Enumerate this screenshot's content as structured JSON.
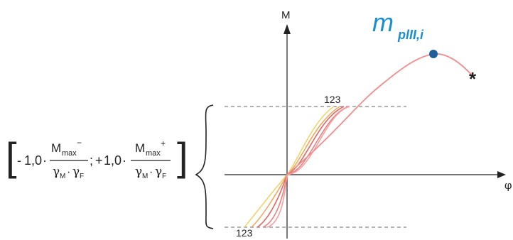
{
  "formula": {
    "left_bracket": "[",
    "right_bracket": "]",
    "term1": {
      "sign": "-",
      "factor": "1,0",
      "dot": "·",
      "numerator_base": "M",
      "numerator_sub": "max",
      "numerator_sup": "−",
      "den_gamma1": "γ",
      "den_sub1": "M",
      "den_dot": "·",
      "den_gamma2": "γ",
      "den_sub2": "F"
    },
    "separator": ";",
    "term2": {
      "sign": "+",
      "factor": "1,0",
      "dot": "·",
      "numerator_base": "M",
      "numerator_sub": "max",
      "numerator_sup": "+",
      "den_gamma1": "γ",
      "den_sub1": "M",
      "den_dot": "·",
      "den_gamma2": "γ",
      "den_sub2": "F"
    }
  },
  "diagram": {
    "y_axis_label": "M",
    "x_axis_label": "φ",
    "peak_label": "m",
    "peak_label_sub": "plII,i",
    "upper_curve_label": "123",
    "lower_curve_label": "123",
    "end_marker": "*"
  },
  "colors": {
    "axis": "#222222",
    "dashed": "#999999",
    "peak_point": "#1f5f9a",
    "peak_label": "#1a8fd0",
    "curve_main": "#f28c8c",
    "curve_red": "#e06666",
    "curve_orange": "#f0a860",
    "curve_yellow": "#f2d36b"
  }
}
